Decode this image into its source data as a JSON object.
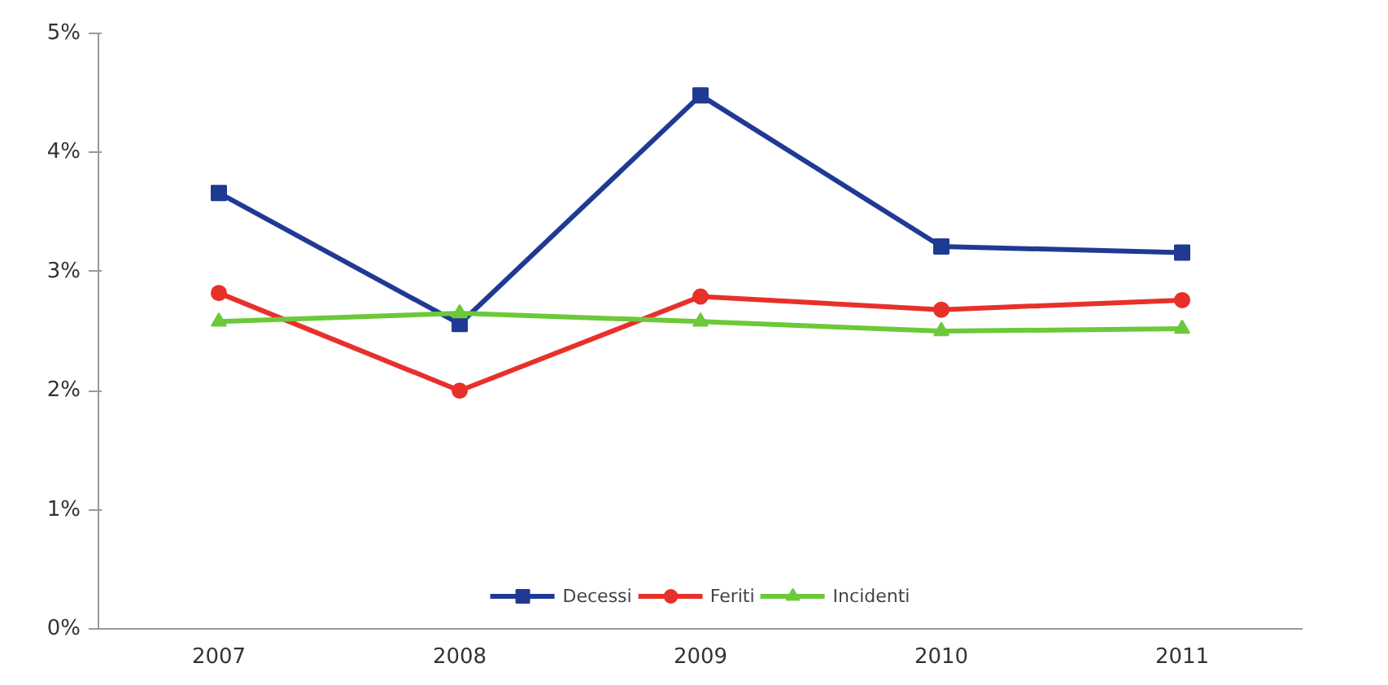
{
  "chart_data": {
    "type": "line",
    "categories": [
      "2007",
      "2008",
      "2009",
      "2010",
      "2011"
    ],
    "series": [
      {
        "name": "Decessi",
        "color": "#1f3a93",
        "marker": "square",
        "values": [
          3.66,
          2.56,
          4.48,
          3.21,
          3.16
        ]
      },
      {
        "name": "Feriti",
        "color": "#e8302a",
        "marker": "circle",
        "values": [
          2.82,
          2.0,
          2.79,
          2.68,
          2.76
        ]
      },
      {
        "name": "Incidenti",
        "color": "#6cc93a",
        "marker": "triangle",
        "values": [
          2.58,
          2.65,
          2.58,
          2.5,
          2.52
        ]
      }
    ],
    "ylim": [
      0,
      5
    ],
    "yticks": [
      {
        "value": 0,
        "label": "0%"
      },
      {
        "value": 1,
        "label": "1%"
      },
      {
        "value": 2,
        "label": "2%"
      },
      {
        "value": 3,
        "label": "3%"
      },
      {
        "value": 4,
        "label": "4%"
      },
      {
        "value": 5,
        "label": "5%"
      }
    ],
    "grid": false,
    "legend": "bottom",
    "line_style": "solid"
  }
}
